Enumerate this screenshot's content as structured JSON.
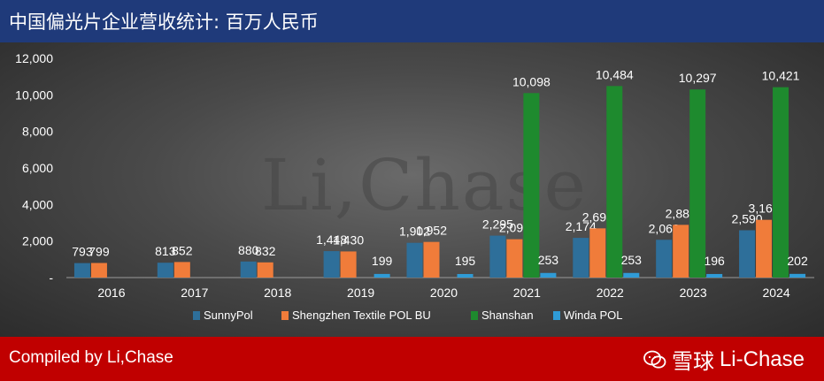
{
  "header": {
    "title": "中国偏光片企业营收统计: 百万人民币"
  },
  "footer": {
    "compiled": "Compiled by Li,Chase",
    "brand_prefix": "雪球",
    "brand_name": "Li-Chase"
  },
  "watermark": {
    "text": "Li,Chase"
  },
  "chart_data": {
    "type": "bar",
    "title": "中国偏光片企业营收统计: 百万人民币",
    "xlabel": "",
    "ylabel": "",
    "ylim": [
      0,
      12000
    ],
    "yticks": [
      0,
      2000,
      4000,
      6000,
      8000,
      10000,
      12000
    ],
    "ytick_labels": [
      "-",
      "2,000",
      "4,000",
      "6,000",
      "8,000",
      "10,000",
      "12,000"
    ],
    "grid": false,
    "legend_position": "bottom",
    "categories": [
      "2016",
      "2017",
      "2018",
      "2019",
      "2020",
      "2021",
      "2022",
      "2023",
      "2024"
    ],
    "series": [
      {
        "name": "SunnyPol",
        "color": "#2e6f9a",
        "values": [
          793,
          813,
          880,
          1448,
          1902,
          2295,
          2174,
          2068,
          2590
        ],
        "labels": [
          "793",
          "813",
          "880",
          "1,448",
          "1,902",
          "2,295",
          "2,174",
          "2,068",
          "2,590"
        ]
      },
      {
        "name": "Shengzhen Textile POL BU",
        "color": "#f07c3a",
        "values": [
          799,
          852,
          832,
          1430,
          1952,
          2099,
          2694,
          2886,
          3161
        ],
        "labels": [
          "799",
          "852",
          "832",
          "1,430",
          "1,952",
          "2,099",
          "2,694",
          "2,886",
          "3,161"
        ]
      },
      {
        "name": "Shanshan",
        "color": "#1e8a2e",
        "values": [
          null,
          null,
          null,
          null,
          null,
          10098,
          10484,
          10297,
          10421
        ],
        "labels": [
          "",
          "",
          "",
          "",
          "",
          "10,098",
          "10,484",
          "10,297",
          "10,421"
        ]
      },
      {
        "name": "Winda POL",
        "color": "#2f9bd6",
        "values": [
          null,
          null,
          null,
          199,
          195,
          253,
          253,
          196,
          202
        ],
        "labels": [
          "",
          "",
          "",
          "199",
          "195",
          "253",
          "253",
          "196",
          "202"
        ]
      }
    ]
  }
}
